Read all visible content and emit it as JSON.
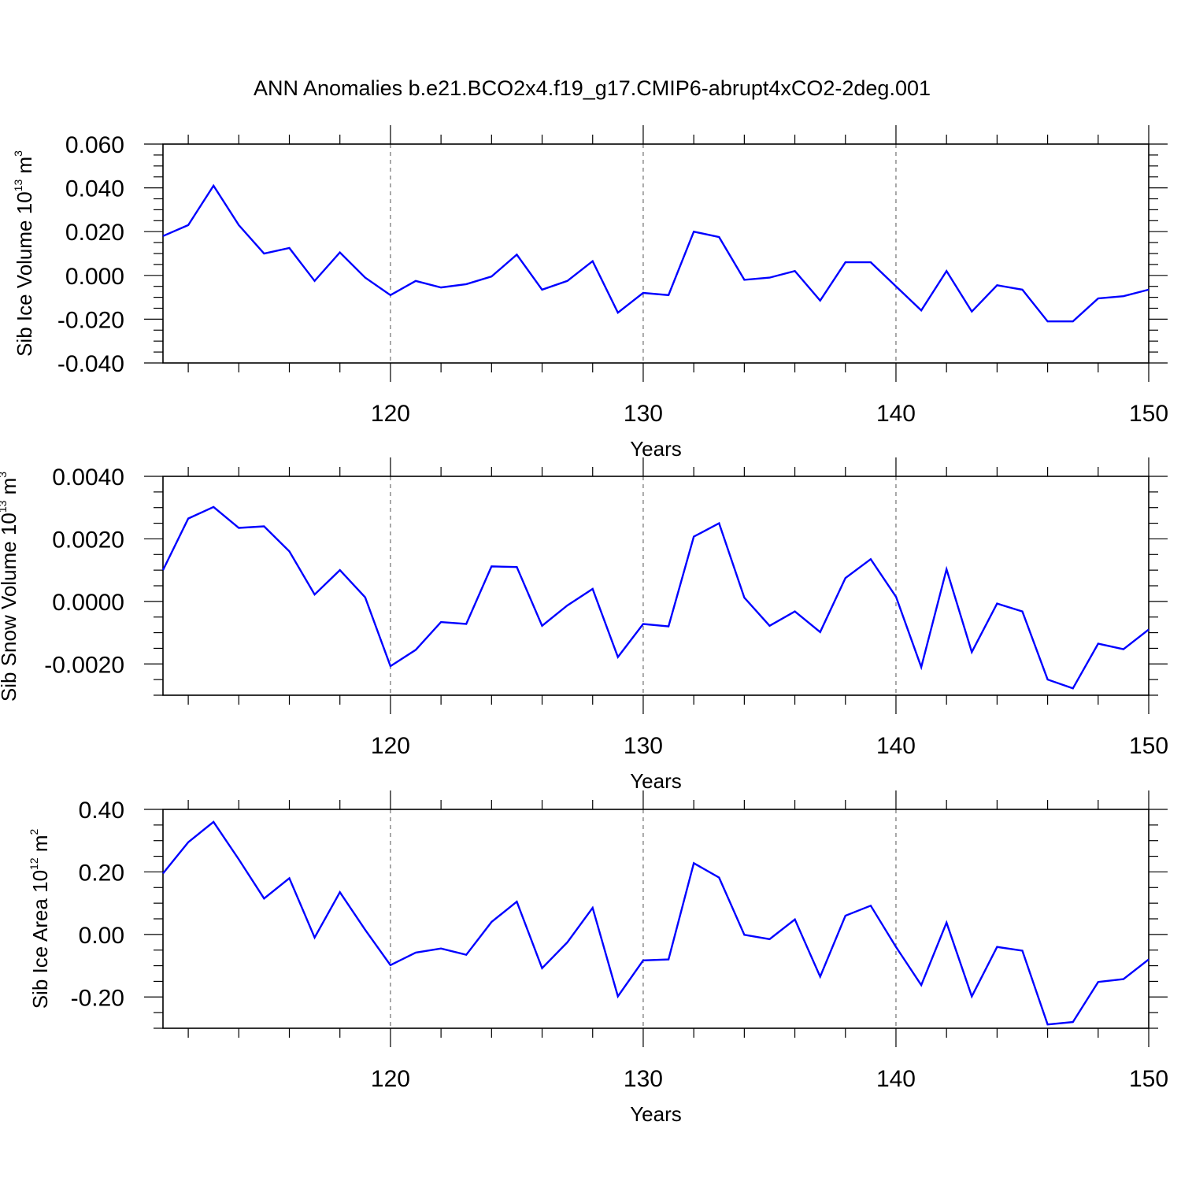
{
  "title": "ANN Anomalies b.e21.BCO2x4.f19_g17.CMIP6-abrupt4xCO2-2deg.001",
  "chart_data": [
    {
      "type": "line",
      "xlabel": "Years",
      "ylabel_main": "Sib Ice Volume 10",
      "ylabel_sup": "13",
      "ylabel_unit": " m",
      "ylabel_unit_sup": "3",
      "xlim": [
        111,
        150
      ],
      "ylim": [
        -0.04,
        0.06
      ],
      "yticks": [
        -0.04,
        -0.02,
        0.0,
        0.02,
        0.04,
        0.06
      ],
      "ytick_labels": [
        "-0.040",
        "-0.020",
        "0.000",
        "0.020",
        "0.040",
        "0.060"
      ],
      "xticks": [
        120,
        130,
        140,
        150
      ],
      "xtick_labels": [
        "120",
        "130",
        "140",
        "150"
      ],
      "grid": "vertical dashed at major x ticks",
      "line_color": "#0000ff",
      "series": [
        {
          "x": [
            111,
            112,
            113,
            114,
            115,
            116,
            117,
            118,
            119,
            120,
            121,
            122,
            123,
            124,
            125,
            126,
            127,
            128,
            129,
            130,
            131,
            132,
            133,
            134,
            135,
            136,
            137,
            138,
            139,
            140,
            141,
            142,
            143,
            144,
            145,
            146,
            147,
            148,
            149,
            150
          ],
          "values": [
            0.018,
            0.023,
            0.041,
            0.023,
            0.01,
            0.0125,
            -0.0025,
            0.0105,
            -0.001,
            -0.009,
            -0.0025,
            -0.0055,
            -0.004,
            -0.0005,
            0.0095,
            -0.0065,
            -0.0025,
            0.0065,
            -0.017,
            -0.008,
            -0.009,
            0.02,
            0.0175,
            -0.002,
            -0.001,
            0.002,
            -0.0115,
            0.006,
            0.006,
            -0.005,
            -0.016,
            0.002,
            -0.0165,
            -0.0045,
            -0.0065,
            -0.021,
            -0.021,
            -0.0105,
            -0.0095,
            -0.0065
          ]
        }
      ]
    },
    {
      "type": "line",
      "xlabel": "Years",
      "ylabel_main": "Sib Snow Volume 10",
      "ylabel_sup": "13",
      "ylabel_unit": " m",
      "ylabel_unit_sup": "3",
      "xlim": [
        111,
        150
      ],
      "ylim": [
        -0.003,
        0.004
      ],
      "yticks": [
        -0.002,
        0.0,
        0.002,
        0.004
      ],
      "ytick_labels": [
        "-0.0020",
        "0.0000",
        "0.0020",
        "0.0040"
      ],
      "xticks": [
        120,
        130,
        140,
        150
      ],
      "xtick_labels": [
        "120",
        "130",
        "140",
        "150"
      ],
      "grid": "vertical dashed at major x ticks",
      "line_color": "#0000ff",
      "series": [
        {
          "x": [
            111,
            112,
            113,
            114,
            115,
            116,
            117,
            118,
            119,
            120,
            121,
            122,
            123,
            124,
            125,
            126,
            127,
            128,
            129,
            130,
            131,
            132,
            133,
            134,
            135,
            136,
            137,
            138,
            139,
            140,
            141,
            142,
            143,
            144,
            145,
            146,
            147,
            148,
            149,
            150
          ],
          "values": [
            0.001,
            0.00265,
            0.00302,
            0.00235,
            0.0024,
            0.0016,
            0.00022,
            0.001,
            0.00013,
            -0.00207,
            -0.00155,
            -0.00066,
            -0.00072,
            0.00112,
            0.0011,
            -0.00078,
            -0.00013,
            0.0004,
            -0.00178,
            -0.00072,
            -0.0008,
            0.00207,
            0.0025,
            0.00012,
            -0.00078,
            -0.00032,
            -0.00098,
            0.00075,
            0.00135,
            0.00015,
            -0.0021,
            0.00103,
            -0.00162,
            -7e-05,
            -0.00032,
            -0.0025,
            -0.00278,
            -0.00135,
            -0.00153,
            -0.0009
          ]
        }
      ]
    },
    {
      "type": "line",
      "xlabel": "Years",
      "ylabel_main": "Sib Ice Area 10",
      "ylabel_sup": "12",
      "ylabel_unit": " m",
      "ylabel_unit_sup": "2",
      "xlim": [
        111,
        150
      ],
      "ylim": [
        -0.3,
        0.4
      ],
      "yticks": [
        -0.2,
        0.0,
        0.2,
        0.4
      ],
      "ytick_labels": [
        "-0.20",
        "0.00",
        "0.20",
        "0.40"
      ],
      "xticks": [
        120,
        130,
        140,
        150
      ],
      "xtick_labels": [
        "120",
        "130",
        "140",
        "150"
      ],
      "grid": "vertical dashed at major x ticks",
      "line_color": "#0000ff",
      "series": [
        {
          "x": [
            111,
            112,
            113,
            114,
            115,
            116,
            117,
            118,
            119,
            120,
            121,
            122,
            123,
            124,
            125,
            126,
            127,
            128,
            129,
            130,
            131,
            132,
            133,
            134,
            135,
            136,
            137,
            138,
            139,
            140,
            141,
            142,
            143,
            144,
            145,
            146,
            147,
            148,
            149,
            150
          ],
          "values": [
            0.195,
            0.295,
            0.36,
            0.24,
            0.115,
            0.18,
            -0.01,
            0.135,
            0.015,
            -0.098,
            -0.058,
            -0.045,
            -0.065,
            0.04,
            0.105,
            -0.108,
            -0.025,
            0.085,
            -0.198,
            -0.083,
            -0.08,
            0.228,
            0.182,
            -0.001,
            -0.015,
            0.048,
            -0.135,
            0.06,
            0.092,
            -0.04,
            -0.162,
            0.038,
            -0.198,
            -0.04,
            -0.052,
            -0.288,
            -0.28,
            -0.152,
            -0.143,
            -0.08
          ]
        }
      ]
    }
  ]
}
